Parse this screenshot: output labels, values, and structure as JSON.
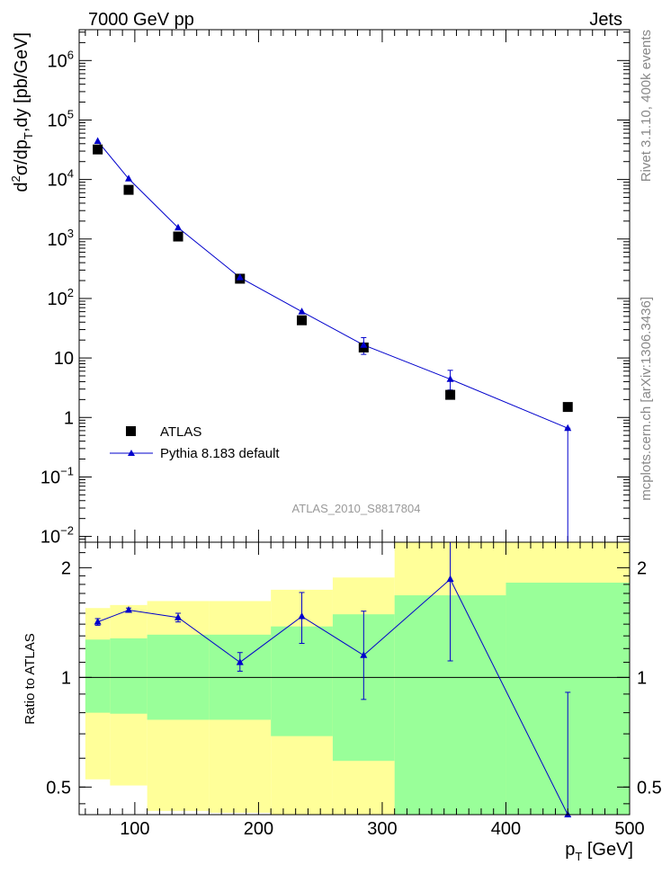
{
  "header": {
    "left": "7000 GeV pp",
    "right": "Jets"
  },
  "side_text": {
    "rivet": "Rivet 3.1.10,  400k events",
    "mcplots": "mcplots.cern.ch [arXiv:1306.3436]"
  },
  "colors": {
    "data": "#000000",
    "mc": "#0000cc",
    "band_inner": "#99ff99",
    "band_outer": "#ffff99"
  },
  "chart_data": [
    {
      "type": "scatter",
      "panel": "main",
      "scale": "log",
      "analysis_label": "ATLAS_2010_S8817804",
      "ylabel": {
        "pre": "d",
        "sup": "2",
        "mid": "σ/dp",
        "sub": "T",
        "post": ",dy [pb/GeV]"
      },
      "ylim": [
        0.008,
        3300000
      ],
      "xlim": [
        55,
        500
      ],
      "y_ticks": [
        {
          "v": 0.01,
          "base": "10",
          "exp": "−2"
        },
        {
          "v": 0.1,
          "base": "10",
          "exp": "−1"
        },
        {
          "v": 1,
          "base": "1",
          "exp": ""
        },
        {
          "v": 10,
          "base": "10",
          "exp": ""
        },
        {
          "v": 100,
          "base": "10",
          "exp": "2"
        },
        {
          "v": 1000,
          "base": "10",
          "exp": "3"
        },
        {
          "v": 10000,
          "base": "10",
          "exp": "4"
        },
        {
          "v": 100000,
          "base": "10",
          "exp": "5"
        },
        {
          "v": 1000000,
          "base": "10",
          "exp": "6"
        }
      ],
      "legend": {
        "position": "bottom-left",
        "entries": [
          "ATLAS",
          "Pythia 8.183 default"
        ]
      },
      "series": [
        {
          "name": "ATLAS",
          "points": [
            {
              "x": 70,
              "y": 32000
            },
            {
              "x": 95,
              "y": 6700
            },
            {
              "x": 135,
              "y": 1100
            },
            {
              "x": 185,
              "y": 215
            },
            {
              "x": 235,
              "y": 43
            },
            {
              "x": 285,
              "y": 15
            },
            {
              "x": 355,
              "y": 2.4
            },
            {
              "x": 450,
              "y": 1.5
            }
          ]
        },
        {
          "name": "Pythia 8.183 default",
          "points": [
            {
              "x": 70,
              "y": 44000,
              "lo": 41000,
              "hi": 47000
            },
            {
              "x": 95,
              "y": 10300,
              "lo": 9900,
              "hi": 10700
            },
            {
              "x": 135,
              "y": 1550,
              "lo": 1500,
              "hi": 1600
            },
            {
              "x": 185,
              "y": 225,
              "lo": 214,
              "hi": 236
            },
            {
              "x": 235,
              "y": 60,
              "lo": 56,
              "hi": 64
            },
            {
              "x": 285,
              "y": 16.5,
              "lo": 11.5,
              "hi": 22
            },
            {
              "x": 355,
              "y": 4.4,
              "lo": 2.9,
              "hi": 6.2
            },
            {
              "x": 450,
              "y": 0.66,
              "lo": 0.001,
              "hi": 0.66
            }
          ]
        }
      ]
    },
    {
      "type": "line",
      "panel": "ratio",
      "scale": "log",
      "ylabel": "Ratio to ATLAS",
      "xlabel": {
        "main": "p",
        "sub": "T",
        "unit": " [GeV]"
      },
      "ylim": [
        0.42,
        2.35
      ],
      "xlim": [
        55,
        500
      ],
      "x_ticks": [
        100,
        200,
        300,
        400,
        500
      ],
      "y_ticks": [
        0.5,
        1,
        2
      ],
      "bands": [
        {
          "x0": 60,
          "x1": 80,
          "inner_lo": 0.8,
          "inner_hi": 1.27,
          "outer_lo": 0.525,
          "outer_hi": 1.55
        },
        {
          "x0": 80,
          "x1": 110,
          "inner_lo": 0.795,
          "inner_hi": 1.28,
          "outer_lo": 0.505,
          "outer_hi": 1.58
        },
        {
          "x0": 110,
          "x1": 160,
          "inner_lo": 0.765,
          "inner_hi": 1.31,
          "outer_lo": 0.43,
          "outer_hi": 1.62
        },
        {
          "x0": 160,
          "x1": 210,
          "inner_lo": 0.765,
          "inner_hi": 1.31,
          "outer_lo": 0.425,
          "outer_hi": 1.62
        },
        {
          "x0": 210,
          "x1": 260,
          "inner_lo": 0.69,
          "inner_hi": 1.38,
          "outer_lo": 0.42,
          "outer_hi": 1.74
        },
        {
          "x0": 260,
          "x1": 310,
          "inner_lo": 0.59,
          "inner_hi": 1.49,
          "outer_lo": 0.42,
          "outer_hi": 1.88
        },
        {
          "x0": 310,
          "x1": 400,
          "inner_lo": 0.42,
          "inner_hi": 1.68,
          "outer_lo": 0.42,
          "outer_hi": 2.35
        },
        {
          "x0": 400,
          "x1": 500,
          "inner_lo": 0.42,
          "inner_hi": 1.82,
          "outer_lo": 0.42,
          "outer_hi": 2.35
        }
      ],
      "series": [
        {
          "name": "Pythia 8.183 default",
          "points": [
            {
              "x": 70,
              "y": 1.42,
              "lo": 1.39,
              "hi": 1.45
            },
            {
              "x": 95,
              "y": 1.53,
              "lo": 1.51,
              "hi": 1.55
            },
            {
              "x": 135,
              "y": 1.46,
              "lo": 1.42,
              "hi": 1.5
            },
            {
              "x": 185,
              "y": 1.1,
              "lo": 1.04,
              "hi": 1.17
            },
            {
              "x": 235,
              "y": 1.47,
              "lo": 1.24,
              "hi": 1.71
            },
            {
              "x": 285,
              "y": 1.15,
              "lo": 0.87,
              "hi": 1.52
            },
            {
              "x": 355,
              "y": 1.86,
              "lo": 1.11,
              "hi": 2.4
            },
            {
              "x": 450,
              "y": 0.42,
              "lo": 0.4,
              "hi": 0.91
            }
          ]
        }
      ]
    }
  ]
}
